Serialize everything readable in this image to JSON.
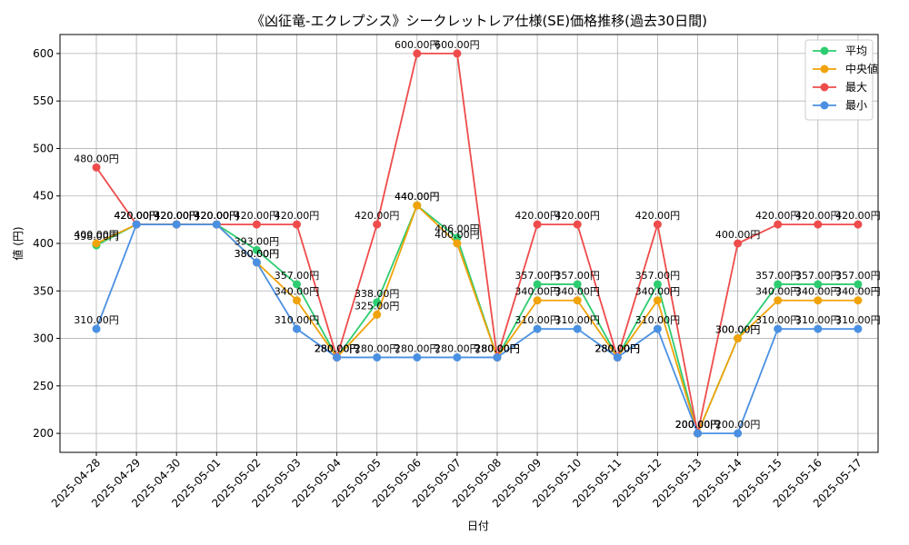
{
  "chart_data": {
    "type": "line",
    "title": "《凶征竜-エクレプシス》シークレットレア仕様(SE)価格推移(過去30日間)",
    "xlabel": "日付",
    "ylabel": "値 (円)",
    "value_suffix": "円",
    "ylim": [
      180,
      620
    ],
    "yticks": [
      200,
      250,
      300,
      350,
      400,
      450,
      500,
      550,
      600
    ],
    "grid": true,
    "legend_position": "top-right",
    "categories": [
      "2025-04-28",
      "2025-04-29",
      "2025-04-30",
      "2025-05-01",
      "2025-05-02",
      "2025-05-03",
      "2025-05-04",
      "2025-05-05",
      "2025-05-06",
      "2025-05-07",
      "2025-05-08",
      "2025-05-09",
      "2025-05-10",
      "2025-05-11",
      "2025-05-12",
      "2025-05-13",
      "2025-05-14",
      "2025-05-15",
      "2025-05-16",
      "2025-05-17"
    ],
    "series": [
      {
        "name": "平均",
        "color": "#2ecc71",
        "values": [
          398,
          420,
          420,
          420,
          393,
          357,
          280,
          338,
          440,
          406,
          280,
          357,
          357,
          280,
          357,
          200,
          300,
          357,
          357,
          357
        ]
      },
      {
        "name": "中央値",
        "color": "#f0a30a",
        "values": [
          400,
          420,
          420,
          420,
          380,
          340,
          280,
          325,
          440,
          400,
          280,
          340,
          340,
          280,
          340,
          200,
          300,
          340,
          340,
          340
        ]
      },
      {
        "name": "最大",
        "color": "#ef4b4b",
        "values": [
          480,
          420,
          420,
          420,
          420,
          420,
          280,
          420,
          600,
          600,
          280,
          420,
          420,
          280,
          420,
          200,
          400,
          420,
          420,
          420
        ]
      },
      {
        "name": "最小",
        "color": "#4a90e2",
        "values": [
          310,
          420,
          420,
          420,
          380,
          310,
          280,
          280,
          280,
          280,
          280,
          310,
          310,
          280,
          310,
          200,
          200,
          310,
          310,
          310
        ]
      }
    ]
  }
}
